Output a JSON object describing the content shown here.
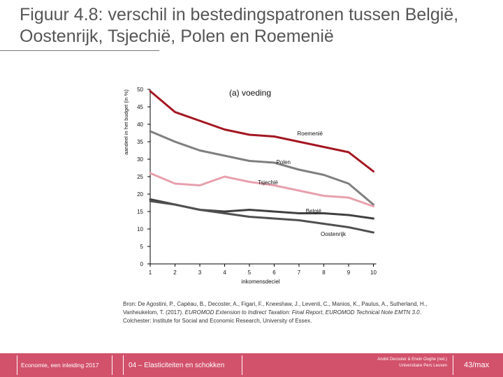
{
  "slide": {
    "title": "Figuur 4.8: verschil in bestedingspatronen tussen België, Oostenrijk, Tsjechië, Polen en Roemenië",
    "source_parts": [
      "Bron: De Agostini, P., Capéau, B., Decoster, A., Figari, F., Kneeshaw, J., Leventi, C., Manios, K., Paulus, A., Sutherland, H., Vanheukelom, T. (2017). ",
      "EUROMOD Extension to Indirect Taxation: Final Report, EUROMOD Technical Note EMTN 3.0",
      ". Colchester: Institute for Social and Economic Research, University of Essex."
    ]
  },
  "footer": {
    "left": "Economie, een inleiding 2017",
    "middle": "04 – Elasticiteiten en schokken",
    "credit_line1": "André Decoster & Erwin Ooghe (red.)",
    "credit_line2": "Universitaire Pers Leuven",
    "page": "43/max",
    "color": "#d2516b"
  },
  "chart_data": {
    "type": "line",
    "title": "(a) voeding",
    "ylabel": "aandeel in het budget (in %)",
    "xlabel": "inkomensdeciel",
    "ylim": [
      0,
      50
    ],
    "yticks": [
      0,
      5,
      10,
      15,
      20,
      25,
      30,
      35,
      40,
      45,
      50
    ],
    "x": [
      1,
      2,
      3,
      4,
      5,
      6,
      7,
      8,
      9,
      10
    ],
    "grid": false,
    "legend": "labels on lines",
    "series": [
      {
        "name": "Roemenië",
        "color": "#a31621",
        "values": [
          49.5,
          43.5,
          41,
          38.5,
          37,
          36.5,
          35,
          33.5,
          32,
          26.5
        ]
      },
      {
        "name": "Polen",
        "color": "#7f7f7f",
        "values": [
          38,
          35,
          32.5,
          31,
          29.5,
          29,
          27,
          25.5,
          23,
          17
        ]
      },
      {
        "name": "Tsjechië",
        "color": "#e8a0ad",
        "values": [
          26,
          23,
          22.5,
          25,
          23.5,
          22.5,
          21,
          19.5,
          19,
          16.5
        ]
      },
      {
        "name": "België",
        "color": "#404040",
        "values": [
          18.5,
          17,
          15.5,
          15,
          15.5,
          15,
          14.5,
          14.5,
          14,
          13
        ]
      },
      {
        "name": "Oostenrijk",
        "color": "#505050",
        "values": [
          18,
          17,
          15.5,
          14.5,
          13.5,
          13,
          12.5,
          11.5,
          10.5,
          9
        ]
      }
    ],
    "line_labels": [
      {
        "series": "Roemenië",
        "text": "Roemenië"
      },
      {
        "series": "Polen",
        "text": "Polen"
      },
      {
        "series": "Tsjechië",
        "text": "Tsjechië"
      },
      {
        "series": "België",
        "text": "België"
      },
      {
        "series": "Oostenrijk",
        "text": "Oostenrijk"
      }
    ]
  }
}
